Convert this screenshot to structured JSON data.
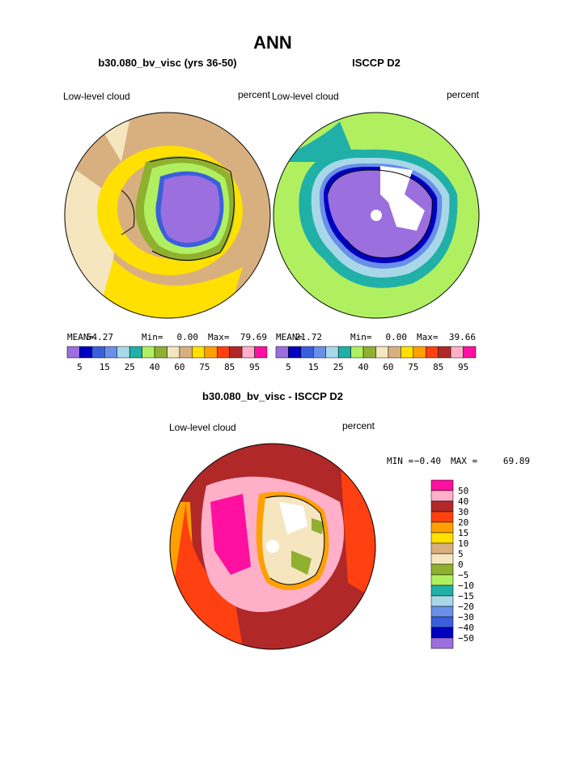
{
  "title": "ANN",
  "panels": [
    {
      "title": "b30.080_bv_visc (yrs 36-50)",
      "variable": "Low-level cloud",
      "units": "percent",
      "stats": [
        {
          "label": "MEAN=",
          "value": "54.27"
        },
        {
          "label": "Min=",
          "value": "0.00"
        },
        {
          "label": "Max=",
          "value": "79.69"
        }
      ]
    },
    {
      "title": "ISCCP D2",
      "variable": "Low-level cloud",
      "units": "percent",
      "stats": [
        {
          "label": "MEAN=",
          "value": "21.72"
        },
        {
          "label": "Min=",
          "value": "0.00"
        },
        {
          "label": "Max=",
          "value": "39.66"
        }
      ]
    }
  ],
  "colorbar": {
    "colors": [
      "#9b6fdd",
      "#0000c0",
      "#3a5fdc",
      "#6a8fe8",
      "#a8d8e8",
      "#20b0a8",
      "#b0f060",
      "#90b030",
      "#f5e6c0",
      "#d8b080",
      "#ffe000",
      "#ffa000",
      "#ff4010",
      "#b02828",
      "#ffb0c8",
      "#ff10a0"
    ],
    "labels": [
      "5",
      "15",
      "25",
      "40",
      "60",
      "75",
      "85",
      "95"
    ]
  },
  "difference": {
    "title": "b30.080_bv_visc - ISCCP D2",
    "variable": "Low-level cloud",
    "units": "percent",
    "stats": [
      {
        "label": "MIN =",
        "value": "−0.40"
      },
      {
        "label": "MAX =",
        "value": "69.89"
      }
    ],
    "colorbar": {
      "colors": [
        "#ff10a0",
        "#ffb0c8",
        "#b02828",
        "#ff4010",
        "#ffa000",
        "#ffe000",
        "#d8b080",
        "#f5e6c0",
        "#90b030",
        "#b0f060",
        "#20b0a8",
        "#a8d8e8",
        "#6a8fe8",
        "#3a5fdc",
        "#0000c0",
        "#9b6fdd"
      ],
      "labels": [
        "50",
        "40",
        "30",
        "20",
        "15",
        "10",
        "5",
        "0",
        "−5",
        "−10",
        "−15",
        "−20",
        "−30",
        "−40",
        "−50"
      ]
    }
  }
}
